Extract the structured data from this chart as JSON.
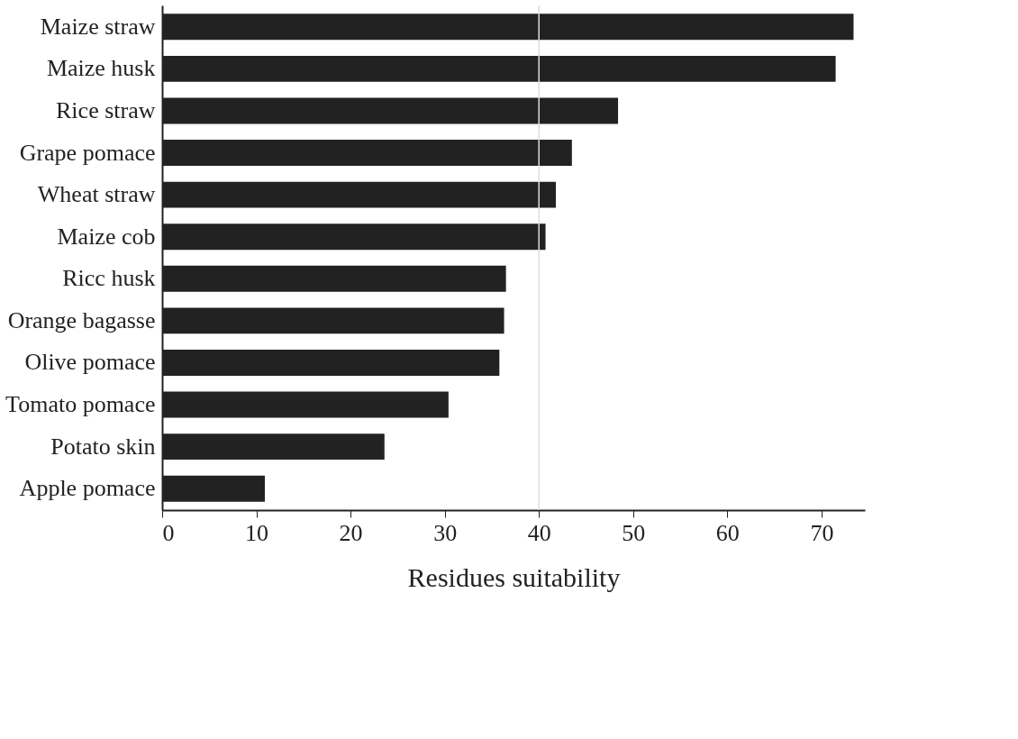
{
  "chart_data": {
    "type": "bar",
    "orientation": "horizontal",
    "xlabel": "Residues suitability",
    "categories": [
      "Maize straw",
      "Maize husk",
      "Rice straw",
      "Grape pomace",
      "Wheat straw",
      "Maize cob",
      "Ricc husk",
      "Orange bagasse",
      "Olive pomace",
      "Tomato pomace",
      "Potato skin",
      "Apple pomace"
    ],
    "values": [
      73.4,
      71.5,
      48.4,
      43.5,
      41.8,
      40.7,
      36.5,
      36.3,
      35.8,
      30.4,
      23.6,
      10.9
    ],
    "color": "#222222",
    "xlim": [
      0,
      74.6
    ],
    "xticks": [
      0,
      10,
      20,
      30,
      40,
      50,
      60,
      70
    ],
    "ref_lines": [
      {
        "axis": "x",
        "value": 40,
        "color": "#dddddd",
        "line_style": "solid"
      }
    ],
    "grid": false
  }
}
